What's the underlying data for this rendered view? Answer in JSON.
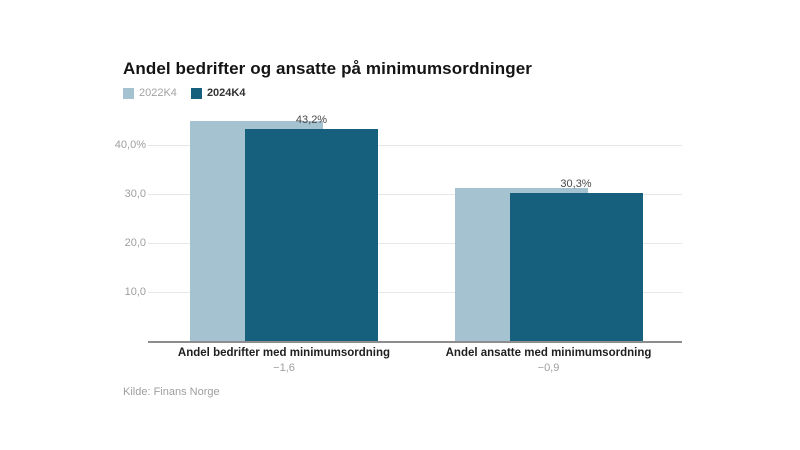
{
  "title": "Andel bedrifter og ansatte på minimumsordninger",
  "source": "Kilde: Finans Norge",
  "legend": {
    "items": [
      {
        "label": "2022K4",
        "color": "#a5c2d0",
        "text_color": "#a3a3a3"
      },
      {
        "label": "2024K4",
        "color": "#16607e",
        "text_color": "#333333"
      }
    ]
  },
  "colors": {
    "series_2022": "#a5c2d0",
    "series_2024": "#16607e",
    "gridline": "#e7e7e7",
    "axis_line": "#8d8d8d",
    "text_muted": "#9e9e9e"
  },
  "chart_data": {
    "type": "bar",
    "title": "Andel bedrifter og ansatte på minimumsordninger",
    "categories": [
      "Andel bedrifter med minimumsordning",
      "Andel ansatte med minimumsordning"
    ],
    "category_sublabels": [
      "−1,6",
      "−0,9"
    ],
    "series": [
      {
        "name": "2022K4",
        "color": "#a5c2d0",
        "values": [
          44.8,
          31.2
        ],
        "data_labels": [
          "",
          ""
        ]
      },
      {
        "name": "2024K4",
        "color": "#16607e",
        "values": [
          43.2,
          30.3
        ],
        "data_labels": [
          "43,2%",
          "30,3%"
        ]
      }
    ],
    "xlabel": "",
    "ylabel": "",
    "ylim": [
      0,
      47
    ],
    "yticks": [
      {
        "value": 40,
        "label": "40,0%"
      },
      {
        "value": 30,
        "label": "30,0"
      },
      {
        "value": 20,
        "label": "20,0"
      },
      {
        "value": 10,
        "label": "10,0"
      }
    ],
    "grid": true,
    "legend_position": "top-left",
    "bar_style": "overlapping-columns"
  }
}
